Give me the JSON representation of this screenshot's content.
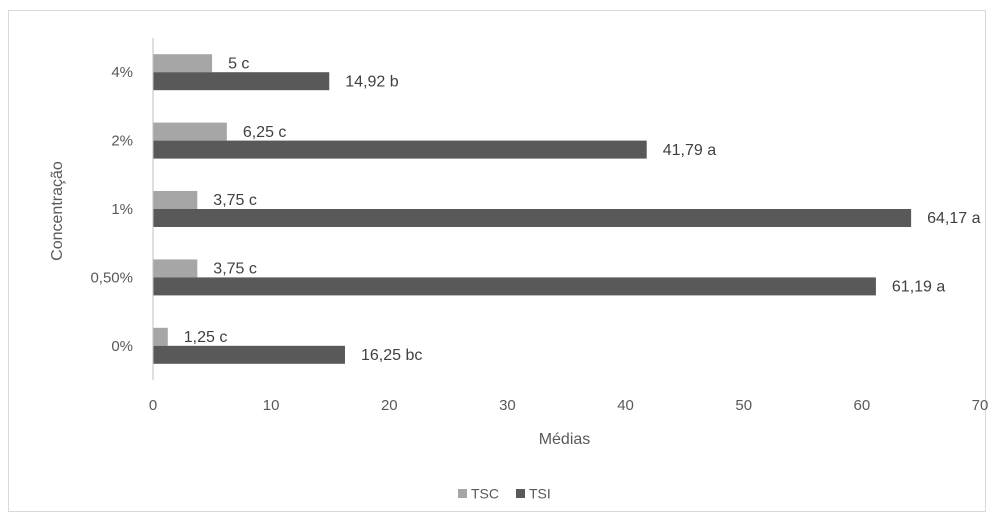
{
  "chart_data": {
    "type": "bar",
    "orientation": "horizontal",
    "title": "",
    "xlabel": "Médias",
    "ylabel": "Concentração",
    "xlim": [
      0,
      70
    ],
    "xticks": [
      "0",
      "10",
      "20",
      "30",
      "40",
      "50",
      "60",
      "70"
    ],
    "grid": false,
    "legend_position": "bottom",
    "categories": [
      "4%",
      "2%",
      "1%",
      "0,50%",
      "0%"
    ],
    "series": [
      {
        "name": "TSC",
        "color": "#a6a6a6",
        "values": [
          5,
          6.25,
          3.75,
          3.75,
          1.25
        ],
        "labels": [
          "5 c",
          "6,25 c",
          "3,75 c",
          "3,75 c",
          "1,25 c"
        ]
      },
      {
        "name": "TSI",
        "color": "#595959",
        "values": [
          14.92,
          41.79,
          64.17,
          61.19,
          16.25
        ],
        "labels": [
          "14,92 b",
          "41,79 a",
          "64,17 a",
          "61,19 a",
          "16,25 bc"
        ]
      }
    ]
  }
}
